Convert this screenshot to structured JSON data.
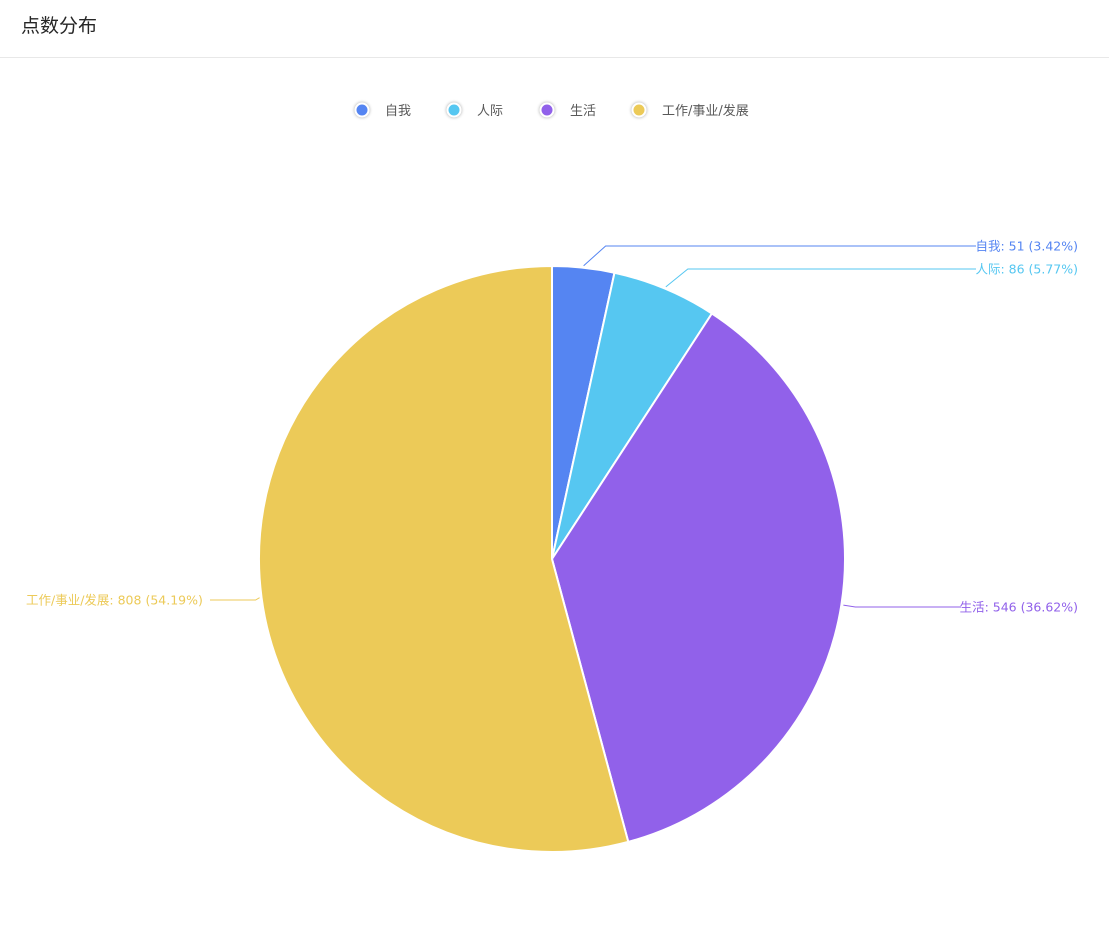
{
  "card": {
    "title": "点数分布"
  },
  "chart_data": {
    "type": "pie",
    "title": "",
    "start_angle": "12 o'clock, clockwise",
    "legend_position": "top-center",
    "categories": [
      "自我",
      "人际",
      "生活",
      "工作/事业/发展"
    ],
    "values": [
      51,
      86,
      546,
      808
    ],
    "percent_labels": [
      "3.42%",
      "5.77%",
      "36.62%",
      "54.19%"
    ],
    "colors": [
      "#5585f2",
      "#56c7f1",
      "#9161ea",
      "#ecca58"
    ],
    "data_labels": [
      "自我: 51 (3.42%)",
      "人际: 86 (5.77%)",
      "生活: 546 (36.62%)",
      "工作/事业/发展: 808 (54.19%)"
    ]
  }
}
